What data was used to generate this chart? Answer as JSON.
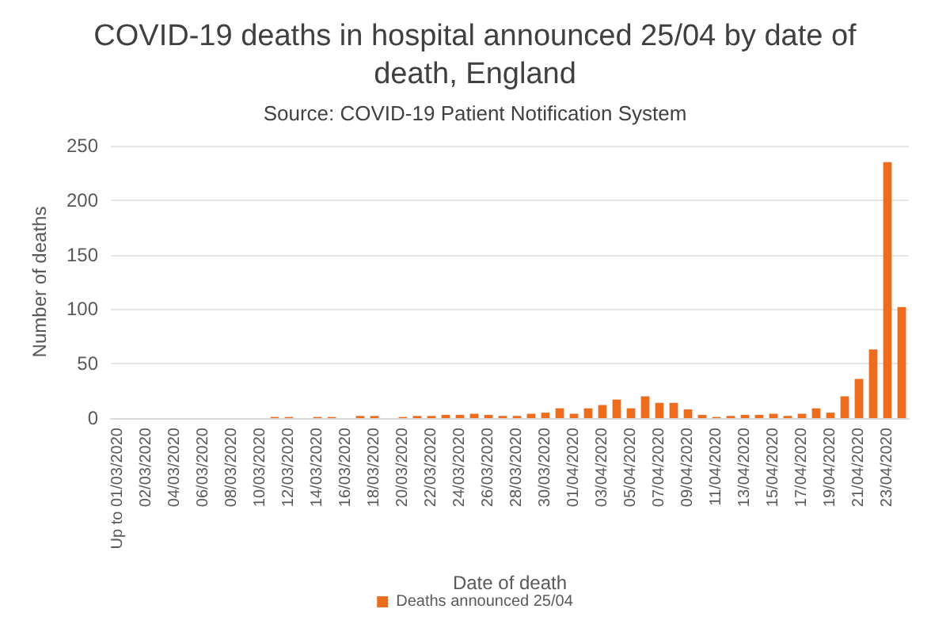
{
  "chart_data": {
    "type": "bar",
    "title": "COVID-19 deaths in hospital announced 25/04 by date of\ndeath, England",
    "subtitle": "Source: COVID-19 Patient Notification System",
    "xlabel": "Date of death",
    "ylabel": "Number of deaths",
    "categories": [
      "Up to 01/03/2020",
      null,
      "02/03/2020",
      null,
      "04/03/2020",
      null,
      "06/03/2020",
      null,
      "08/03/2020",
      null,
      "10/03/2020",
      null,
      "12/03/2020",
      null,
      "14/03/2020",
      null,
      "16/03/2020",
      null,
      "18/03/2020",
      null,
      "20/03/2020",
      null,
      "22/03/2020",
      null,
      "24/03/2020",
      null,
      "26/03/2020",
      null,
      "28/03/2020",
      null,
      "30/03/2020",
      null,
      "01/04/2020",
      null,
      "03/04/2020",
      null,
      "05/04/2020",
      null,
      "07/04/2020",
      null,
      "09/04/2020",
      null,
      "11/04/2020",
      null,
      "13/04/2020",
      null,
      "15/04/2020",
      null,
      "17/04/2020",
      null,
      "19/04/2020",
      null,
      "21/04/2020",
      null,
      "23/04/2020",
      null
    ],
    "series": [
      {
        "name": "Deaths announced 25/04",
        "color": "#ed6d1f",
        "values": [
          0,
          0,
          0,
          0,
          0,
          0,
          0,
          0,
          0,
          0,
          0,
          1,
          1,
          0,
          1,
          1,
          0,
          2,
          2,
          0,
          1,
          2,
          2,
          3,
          3,
          4,
          3,
          2,
          2,
          4,
          5,
          9,
          4,
          9,
          12,
          17,
          9,
          20,
          14,
          14,
          8,
          3,
          1,
          2,
          3,
          3,
          4,
          2,
          4,
          9,
          5,
          20,
          36,
          63,
          235,
          102
        ]
      }
    ],
    "ylim": [
      0,
      250
    ],
    "yticks": [
      0,
      50,
      100,
      150,
      200,
      250
    ],
    "grid": "y",
    "legend": "bottom"
  }
}
